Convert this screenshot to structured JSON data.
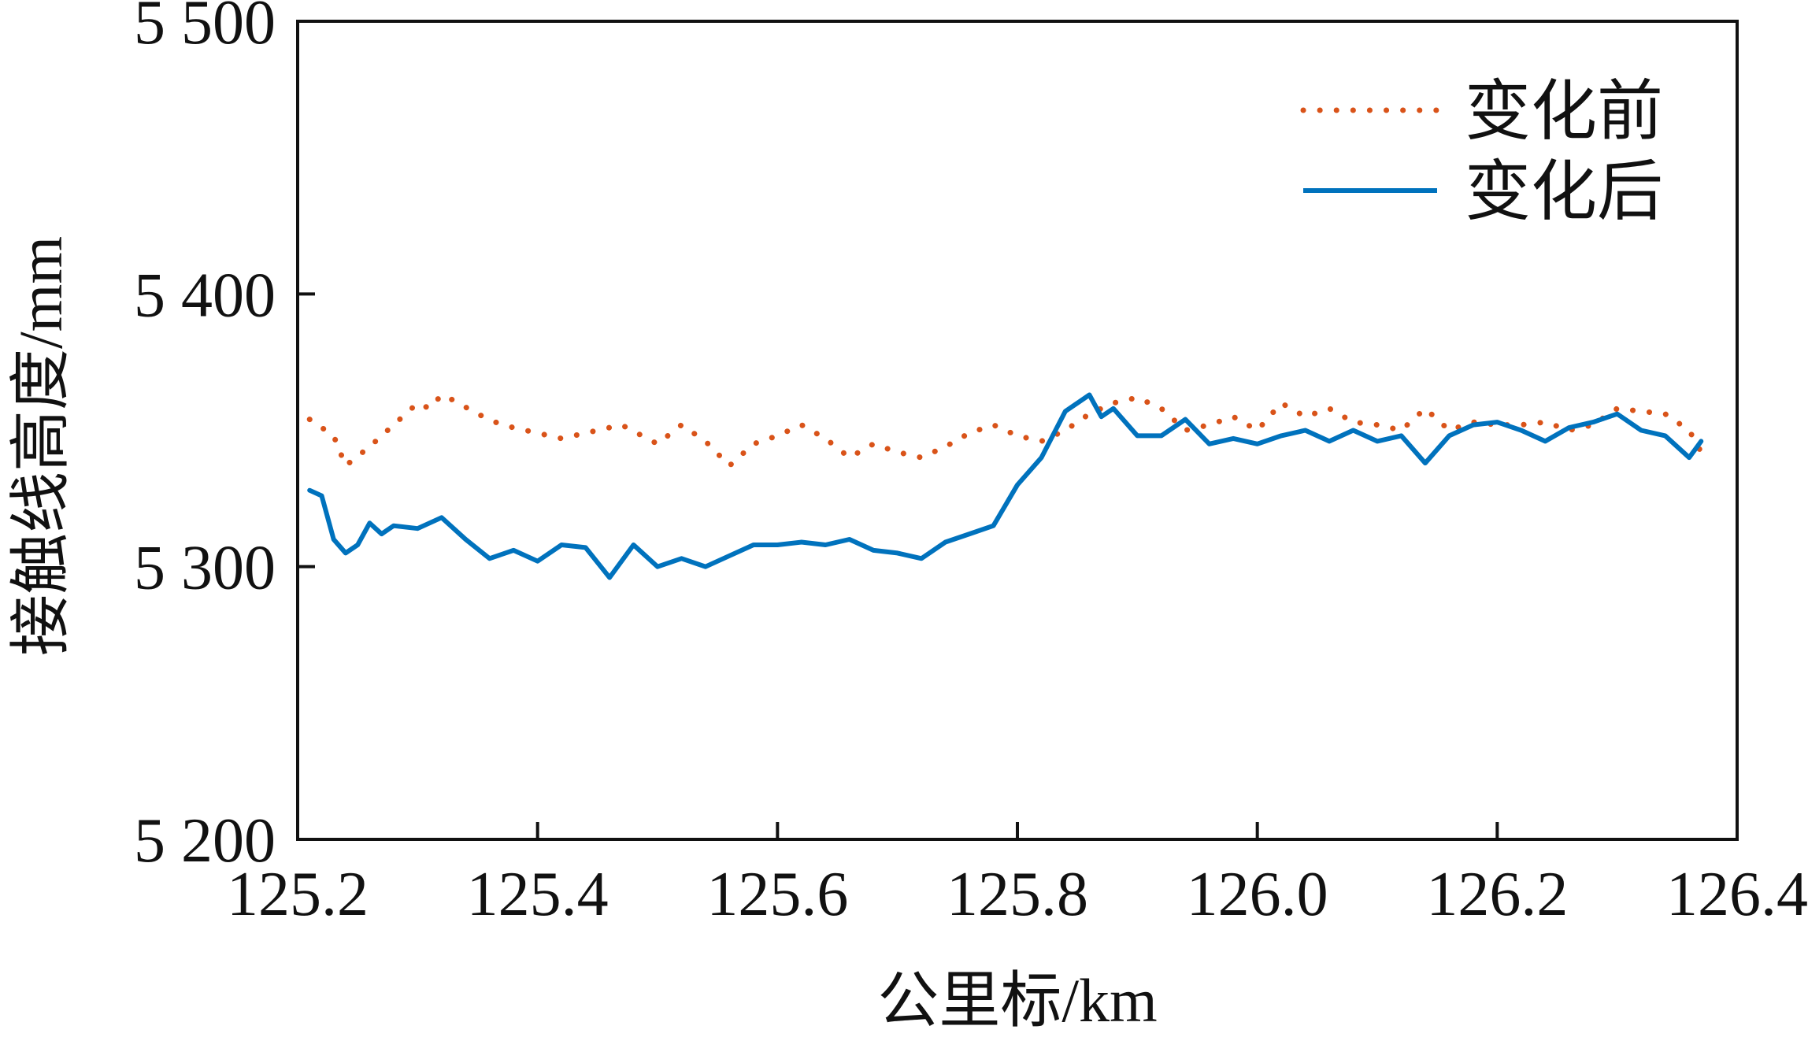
{
  "chart_data": {
    "type": "line",
    "title": "",
    "xlabel": "公里标/km",
    "ylabel": "接触线高度/mm",
    "xlim": [
      125.2,
      126.4
    ],
    "ylim": [
      5200,
      5500
    ],
    "x_ticks": [
      125.2,
      125.4,
      125.6,
      125.8,
      126.0,
      126.2,
      126.4
    ],
    "x_tick_labels": [
      "125.2",
      "125.4",
      "125.6",
      "125.8",
      "126.0",
      "126.2",
      "126.4"
    ],
    "y_ticks": [
      5200,
      5300,
      5400,
      5500
    ],
    "y_tick_labels": [
      "5 200",
      "5 300",
      "5 400",
      "5 500"
    ],
    "grid": false,
    "legend_position": "top-right",
    "series": [
      {
        "name": "变化前",
        "color": "#d95319",
        "style": "dotted",
        "x": [
          125.21,
          125.23,
          125.24,
          125.26,
          125.28,
          125.3,
          125.31,
          125.32,
          125.33,
          125.35,
          125.37,
          125.4,
          125.42,
          125.45,
          125.47,
          125.5,
          125.52,
          125.54,
          125.56,
          125.58,
          125.6,
          125.62,
          125.64,
          125.66,
          125.68,
          125.7,
          125.72,
          125.74,
          125.76,
          125.78,
          125.8,
          125.82,
          125.84,
          125.86,
          125.88,
          125.9,
          125.92,
          125.94,
          125.96,
          125.98,
          126.0,
          126.02,
          126.04,
          126.06,
          126.08,
          126.1,
          126.12,
          126.14,
          126.16,
          126.18,
          126.2,
          126.22,
          126.24,
          126.26,
          126.28,
          126.3,
          126.32,
          126.34,
          126.36,
          126.37
        ],
        "y": [
          5354,
          5348,
          5337,
          5344,
          5352,
          5360,
          5358,
          5363,
          5361,
          5356,
          5352,
          5349,
          5347,
          5350,
          5352,
          5345,
          5352,
          5346,
          5337,
          5345,
          5348,
          5352,
          5347,
          5340,
          5345,
          5342,
          5340,
          5344,
          5349,
          5352,
          5348,
          5346,
          5350,
          5356,
          5360,
          5362,
          5358,
          5350,
          5352,
          5355,
          5350,
          5360,
          5355,
          5358,
          5353,
          5352,
          5350,
          5358,
          5350,
          5353,
          5352,
          5352,
          5353,
          5350,
          5352,
          5358,
          5357,
          5356,
          5350,
          5342
        ]
      },
      {
        "name": "变化后",
        "color": "#0072bd",
        "style": "solid",
        "x": [
          125.21,
          125.22,
          125.23,
          125.24,
          125.25,
          125.26,
          125.27,
          125.28,
          125.3,
          125.32,
          125.34,
          125.36,
          125.38,
          125.4,
          125.42,
          125.44,
          125.46,
          125.48,
          125.5,
          125.52,
          125.54,
          125.56,
          125.58,
          125.6,
          125.62,
          125.64,
          125.66,
          125.68,
          125.7,
          125.72,
          125.74,
          125.76,
          125.78,
          125.8,
          125.82,
          125.84,
          125.85,
          125.86,
          125.87,
          125.88,
          125.9,
          125.92,
          125.94,
          125.96,
          125.98,
          126.0,
          126.02,
          126.04,
          126.06,
          126.08,
          126.1,
          126.12,
          126.14,
          126.16,
          126.18,
          126.2,
          126.22,
          126.24,
          126.26,
          126.28,
          126.3,
          126.32,
          126.34,
          126.36,
          126.37
        ],
        "y": [
          5328,
          5326,
          5310,
          5305,
          5308,
          5316,
          5312,
          5315,
          5314,
          5318,
          5310,
          5303,
          5306,
          5302,
          5308,
          5307,
          5296,
          5308,
          5300,
          5303,
          5300,
          5304,
          5308,
          5308,
          5309,
          5308,
          5310,
          5306,
          5305,
          5303,
          5309,
          5312,
          5315,
          5330,
          5340,
          5357,
          5360,
          5363,
          5355,
          5358,
          5348,
          5348,
          5354,
          5345,
          5347,
          5345,
          5348,
          5350,
          5346,
          5350,
          5346,
          5348,
          5338,
          5348,
          5352,
          5353,
          5350,
          5346,
          5351,
          5353,
          5356,
          5350,
          5348,
          5340,
          5346
        ]
      }
    ]
  }
}
